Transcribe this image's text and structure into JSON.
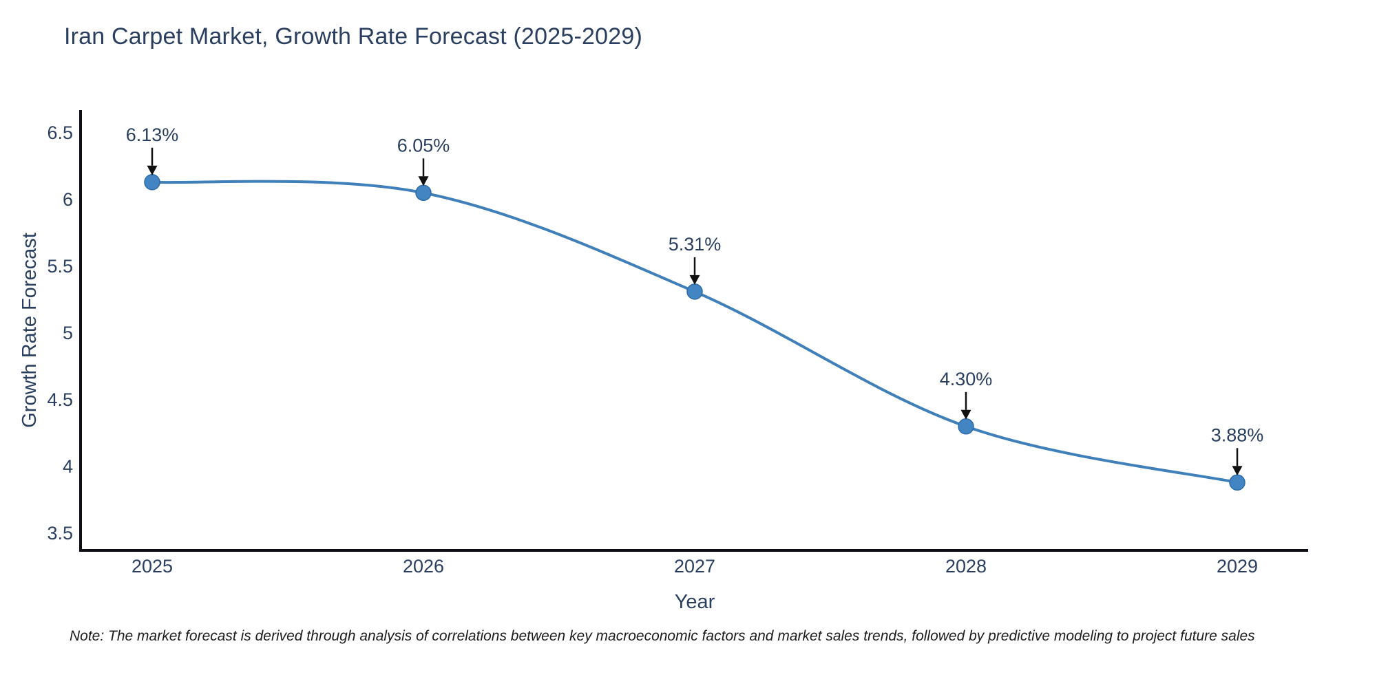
{
  "note": "Note: The market forecast is derived through analysis of correlations between key macroeconomic factors and market sales trends, followed by predictive modeling to project future sales",
  "chart_data": {
    "type": "line",
    "title": "Iran Carpet Market, Growth Rate Forecast (2025-2029)",
    "xlabel": "Year",
    "ylabel": "Growth Rate Forecast",
    "categories": [
      "2025",
      "2026",
      "2027",
      "2028",
      "2029"
    ],
    "values": [
      6.13,
      6.05,
      5.31,
      4.3,
      3.88
    ],
    "point_labels": [
      "6.13%",
      "6.05%",
      "5.31%",
      "4.30%",
      "3.88%"
    ],
    "yticks": [
      3.5,
      4,
      4.5,
      5,
      5.5,
      6,
      6.5
    ],
    "ytick_labels": [
      "3.5",
      "4",
      "4.5",
      "5",
      "5.5",
      "6",
      "6.5"
    ],
    "ylim": [
      3.37,
      6.67
    ],
    "grid": false,
    "legend_position": "none",
    "curve": "smooth",
    "annotation_style": "arrow-down",
    "colors": {
      "line": "#3f7fba",
      "marker": "#4285c2",
      "marker_edge": "#2d6ca8",
      "text": "#2a3f5f",
      "axis": "#0d0f14",
      "arrow": "#111111",
      "note_text": "#1c1c1c",
      "background": "#ffffff"
    }
  }
}
